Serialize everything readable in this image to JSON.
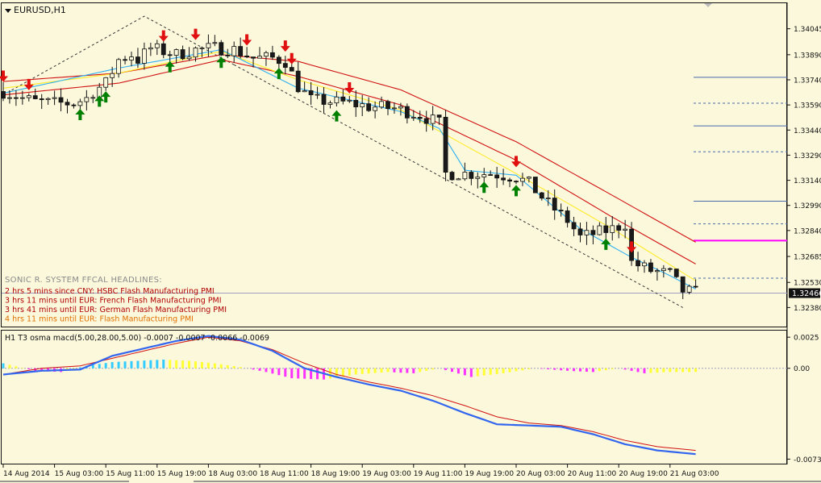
{
  "window": {
    "title": "EURUSD,H1",
    "collapse_icon": "triangle-down-icon",
    "scroll_icon": "triangle-down-icon"
  },
  "colors": {
    "background": "#fbf8dc",
    "bull_candle": "#fbf8dc",
    "bear_candle": "#1a1a1a",
    "wave_outer": "#d11111",
    "wave_inner": "#ffeb2b",
    "fast_ma": "#2fb0f2",
    "arrow_up": "#008000",
    "arrow_down": "#e01010",
    "level_line": "#4a6aa8",
    "level_magenta": "#ff00ff",
    "current_price_line": "#9fa0c0",
    "osma_pos_cyan": "#33ccff",
    "osma_pos_yellow": "#ffff33",
    "osma_neg_magenta": "#ff33ff",
    "macd_line": "#3366ee",
    "signal_line": "#d11111"
  },
  "headlines": {
    "title": "SONIC R. SYSTEM  FFCAL HEADLINES:",
    "items": [
      {
        "text": "2 hrs 5 mins since CNY: HSBC Flash Manufacturing PMI",
        "color": "#b00000"
      },
      {
        "text": "3 hrs 11 mins until EUR: French Flash Manufacturing PMI",
        "color": "#b00000"
      },
      {
        "text": "3 hrs 41 mins until EUR: German Flash Manufacturing PMI",
        "color": "#b00000"
      },
      {
        "text": "4 hrs 11 mins until EUR: Flash Manufacturing PMI",
        "color": "#e07000"
      }
    ]
  },
  "indicator": {
    "title": "H1  T3 osma macd(5.00,28.00,5.00) -0.0007 -0.0007 -0.0066 -0.0069"
  },
  "chart_data": [
    {
      "type": "candlestick",
      "symbol": "EURUSD",
      "timeframe": "H1",
      "y_axis_ticks": [
        "1.34045",
        "1.33890",
        "1.33740",
        "1.33590",
        "1.33440",
        "1.33290",
        "1.33140",
        "1.32990",
        "1.32840",
        "1.32685",
        "1.32530",
        "1.32380"
      ],
      "ylim": [
        1.323,
        1.3413
      ],
      "current_price": "1.32466",
      "x_tick_labels": [
        "14 Aug 2014",
        "15 Aug 03:00",
        "15 Aug 11:00",
        "15 Aug 19:00",
        "18 Aug 03:00",
        "18 Aug 11:00",
        "18 Aug 19:00",
        "19 Aug 03:00",
        "19 Aug 11:00",
        "19 Aug 19:00",
        "20 Aug 03:00",
        "20 Aug 11:00",
        "20 Aug 19:00",
        "21 Aug 03:00"
      ],
      "close_path": [
        [
          0,
          1.3367
        ],
        [
          3,
          1.3363
        ],
        [
          5,
          1.3361
        ],
        [
          8,
          1.336
        ],
        [
          11,
          1.336
        ],
        [
          13,
          1.3363
        ],
        [
          14,
          1.3367
        ],
        [
          16,
          1.3372
        ],
        [
          18,
          1.3386
        ],
        [
          20,
          1.3389
        ],
        [
          21,
          1.3386
        ],
        [
          23,
          1.3393
        ],
        [
          25,
          1.3391
        ],
        [
          27,
          1.3389
        ],
        [
          30,
          1.3392
        ],
        [
          33,
          1.3393
        ],
        [
          36,
          1.3392
        ],
        [
          39,
          1.3387
        ],
        [
          42,
          1.3387
        ],
        [
          44,
          1.3385
        ],
        [
          46,
          1.337
        ],
        [
          48,
          1.3362
        ],
        [
          51,
          1.3361
        ],
        [
          54,
          1.336
        ],
        [
          57,
          1.3358
        ],
        [
          61,
          1.3357
        ],
        [
          65,
          1.3353
        ],
        [
          68,
          1.3348
        ],
        [
          69,
          1.3318
        ],
        [
          72,
          1.3318
        ],
        [
          76,
          1.3318
        ],
        [
          80,
          1.3316
        ],
        [
          82,
          1.3312
        ],
        [
          85,
          1.33
        ],
        [
          88,
          1.329
        ],
        [
          90,
          1.328
        ],
        [
          93,
          1.3283
        ],
        [
          95,
          1.3285
        ],
        [
          97,
          1.3288
        ],
        [
          98,
          1.3265
        ],
        [
          101,
          1.326
        ],
        [
          104,
          1.3258
        ],
        [
          106,
          1.3248
        ],
        [
          108,
          1.3247
        ]
      ],
      "overlays": [
        {
          "name": "wave_high",
          "color": "#d11111",
          "points": [
            [
              0,
              1.3373
            ],
            [
              18,
              1.3378
            ],
            [
              34,
              1.3389
            ],
            [
              46,
              1.3385
            ],
            [
              62,
              1.3368
            ],
            [
              80,
              1.3337
            ],
            [
              95,
              1.3305
            ],
            [
              108,
              1.3277
            ]
          ]
        },
        {
          "name": "wave_low",
          "color": "#d11111",
          "points": [
            [
              0,
              1.3365
            ],
            [
              18,
              1.3372
            ],
            [
              34,
              1.3386
            ],
            [
              46,
              1.3376
            ],
            [
              62,
              1.3359
            ],
            [
              80,
              1.3326
            ],
            [
              95,
              1.3292
            ],
            [
              108,
              1.3264
            ]
          ]
        },
        {
          "name": "wave_close",
          "color": "#ffeb2b",
          "points": [
            [
              0,
              1.3369
            ],
            [
              18,
              1.3378
            ],
            [
              34,
              1.3391
            ],
            [
              46,
              1.3374
            ],
            [
              62,
              1.3356
            ],
            [
              80,
              1.3318
            ],
            [
              95,
              1.3285
            ],
            [
              108,
              1.3254
            ]
          ]
        },
        {
          "name": "fast_ma",
          "color": "#2fb0f2",
          "points": [
            [
              0,
              1.3366
            ],
            [
              18,
              1.3381
            ],
            [
              34,
              1.3392
            ],
            [
              46,
              1.3369
            ],
            [
              62,
              1.3355
            ],
            [
              68,
              1.3345
            ],
            [
              72,
              1.332
            ],
            [
              80,
              1.3317
            ],
            [
              90,
              1.3285
            ],
            [
              98,
              1.3268
            ],
            [
              104,
              1.3257
            ],
            [
              108,
              1.3249
            ]
          ]
        }
      ],
      "trendlines": [
        {
          "style": "dashed",
          "points": [
            [
              0,
              1.3365
            ],
            [
              22,
              1.3412
            ],
            [
              36,
              1.3383
            ]
          ]
        },
        {
          "style": "dashed",
          "points": [
            [
              36,
              1.3383
            ],
            [
              106,
              1.3238
            ]
          ]
        }
      ],
      "arrows_up": [
        12,
        15,
        16,
        26,
        34,
        43,
        52,
        75,
        80,
        94
      ],
      "arrows_down": [
        0,
        4,
        25,
        30,
        38,
        44,
        45,
        54,
        80,
        98
      ],
      "horizontal_levels": [
        {
          "y": 1.33755,
          "style": "solid",
          "color": "#4a6aa8"
        },
        {
          "y": 1.336,
          "style": "dashed",
          "color": "#4a6aa8"
        },
        {
          "y": 1.33465,
          "style": "solid",
          "color": "#4a6aa8"
        },
        {
          "y": 1.3331,
          "style": "dashed",
          "color": "#4a6aa8"
        },
        {
          "y": 1.33015,
          "style": "solid",
          "color": "#4a6aa8"
        },
        {
          "y": 1.3288,
          "style": "dashed",
          "color": "#4a6aa8"
        },
        {
          "y": 1.3278,
          "style": "solid",
          "color": "#ff00ff"
        },
        {
          "y": 1.32555,
          "style": "dashed",
          "color": "#4a6aa8"
        },
        {
          "y": 1.32466,
          "style": "solid",
          "color": "#9fa0c0"
        }
      ]
    },
    {
      "type": "bar",
      "subtitle": "T3 osma macd(5.00,28.00,5.00)",
      "y_axis_ticks": [
        "0.0025",
        "0.00",
        "-0.0073"
      ],
      "ylim": [
        -0.0076,
        0.0029
      ],
      "zero_line": 0.0,
      "histogram_path": [
        [
          0,
          0.0004
        ],
        [
          5,
          -0.0002
        ],
        [
          9,
          -0.0003
        ],
        [
          13,
          0.0002
        ],
        [
          17,
          0.0005
        ],
        [
          21,
          0.0006
        ],
        [
          25,
          0.0007
        ],
        [
          29,
          0.0006
        ],
        [
          33,
          0.0004
        ],
        [
          37,
          0.0001
        ],
        [
          41,
          -0.0003
        ],
        [
          45,
          -0.0008
        ],
        [
          50,
          -0.0009
        ],
        [
          55,
          -0.0005
        ],
        [
          60,
          -0.0003
        ],
        [
          64,
          -0.0004
        ],
        [
          68,
          0.0
        ],
        [
          73,
          -0.0007
        ],
        [
          78,
          -0.0004
        ],
        [
          83,
          0.0
        ],
        [
          88,
          -0.0002
        ],
        [
          92,
          -0.0003
        ],
        [
          96,
          0.0
        ],
        [
          100,
          -0.0004
        ],
        [
          104,
          -0.0003
        ],
        [
          108,
          -0.0003
        ]
      ],
      "macd_path": [
        [
          0,
          -0.0005
        ],
        [
          6,
          -0.0002
        ],
        [
          12,
          -0.0001
        ],
        [
          17,
          0.001
        ],
        [
          22,
          0.0016
        ],
        [
          27,
          0.0022
        ],
        [
          32,
          0.0026
        ],
        [
          37,
          0.0023
        ],
        [
          42,
          0.0014
        ],
        [
          47,
          0.0
        ],
        [
          52,
          -0.0007
        ],
        [
          57,
          -0.0013
        ],
        [
          62,
          -0.0018
        ],
        [
          67,
          -0.0026
        ],
        [
          72,
          -0.0036
        ],
        [
          77,
          -0.0045
        ],
        [
          82,
          -0.0046
        ],
        [
          87,
          -0.0047
        ],
        [
          92,
          -0.0053
        ],
        [
          97,
          -0.0061
        ],
        [
          102,
          -0.0066
        ],
        [
          108,
          -0.0069
        ]
      ],
      "signal_path": [
        [
          0,
          -0.0005
        ],
        [
          6,
          0.0
        ],
        [
          12,
          0.0002
        ],
        [
          17,
          0.0008
        ],
        [
          22,
          0.0014
        ],
        [
          27,
          0.002
        ],
        [
          32,
          0.0025
        ],
        [
          37,
          0.0022
        ],
        [
          42,
          0.0015
        ],
        [
          47,
          0.0004
        ],
        [
          52,
          -0.0005
        ],
        [
          57,
          -0.0011
        ],
        [
          62,
          -0.0016
        ],
        [
          67,
          -0.0022
        ],
        [
          72,
          -0.003
        ],
        [
          77,
          -0.0039
        ],
        [
          82,
          -0.0044
        ],
        [
          87,
          -0.0046
        ],
        [
          92,
          -0.0051
        ],
        [
          97,
          -0.0058
        ],
        [
          102,
          -0.0063
        ],
        [
          108,
          -0.0066
        ]
      ]
    }
  ]
}
